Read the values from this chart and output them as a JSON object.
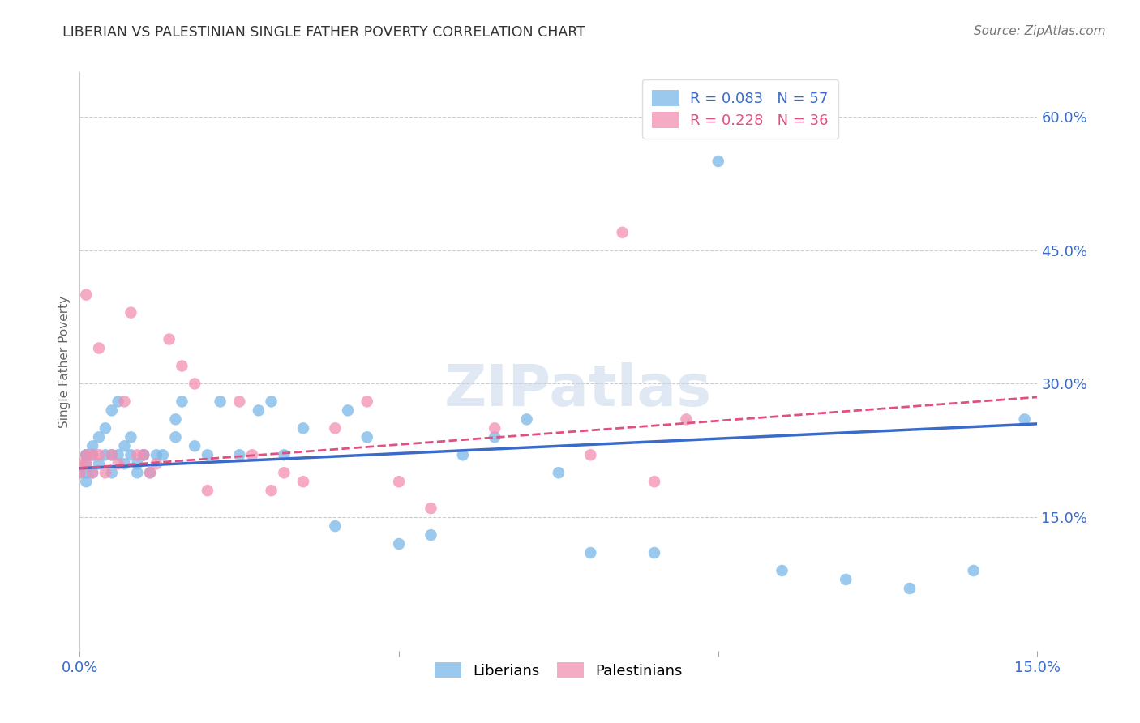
{
  "title": "LIBERIAN VS PALESTINIAN SINGLE FATHER POVERTY CORRELATION CHART",
  "source": "Source: ZipAtlas.com",
  "ylabel": "Single Father Poverty",
  "xlim": [
    0.0,
    0.15
  ],
  "ylim": [
    0.0,
    0.65
  ],
  "liberian_color": "#7ab8e8",
  "palestinian_color": "#f48fb1",
  "liberian_line_color": "#3a6bc9",
  "palestinian_line_color": "#e05080",
  "watermark": "ZIPatlas",
  "R_lib": 0.083,
  "N_lib": 57,
  "R_pal": 0.228,
  "N_pal": 36,
  "liberian_x": [
    0.0,
    0.001,
    0.001,
    0.001,
    0.001,
    0.001,
    0.002,
    0.002,
    0.002,
    0.003,
    0.003,
    0.004,
    0.004,
    0.005,
    0.005,
    0.005,
    0.006,
    0.006,
    0.007,
    0.007,
    0.008,
    0.008,
    0.009,
    0.009,
    0.01,
    0.01,
    0.011,
    0.012,
    0.013,
    0.015,
    0.015,
    0.016,
    0.018,
    0.02,
    0.022,
    0.025,
    0.028,
    0.03,
    0.032,
    0.035,
    0.04,
    0.042,
    0.045,
    0.05,
    0.055,
    0.06,
    0.065,
    0.07,
    0.075,
    0.08,
    0.09,
    0.1,
    0.11,
    0.12,
    0.13,
    0.14,
    0.148
  ],
  "liberian_y": [
    0.2,
    0.22,
    0.19,
    0.2,
    0.22,
    0.21,
    0.23,
    0.2,
    0.22,
    0.21,
    0.24,
    0.22,
    0.25,
    0.2,
    0.22,
    0.27,
    0.22,
    0.28,
    0.23,
    0.21,
    0.22,
    0.24,
    0.21,
    0.2,
    0.22,
    0.22,
    0.2,
    0.22,
    0.22,
    0.26,
    0.24,
    0.28,
    0.23,
    0.22,
    0.28,
    0.22,
    0.27,
    0.28,
    0.22,
    0.25,
    0.14,
    0.27,
    0.24,
    0.12,
    0.13,
    0.22,
    0.24,
    0.26,
    0.2,
    0.11,
    0.11,
    0.55,
    0.09,
    0.08,
    0.07,
    0.09,
    0.26
  ],
  "palestinian_x": [
    0.0,
    0.0,
    0.001,
    0.001,
    0.001,
    0.002,
    0.002,
    0.003,
    0.003,
    0.004,
    0.005,
    0.006,
    0.007,
    0.008,
    0.009,
    0.01,
    0.011,
    0.012,
    0.014,
    0.016,
    0.018,
    0.02,
    0.025,
    0.027,
    0.03,
    0.032,
    0.035,
    0.04,
    0.045,
    0.05,
    0.055,
    0.065,
    0.08,
    0.085,
    0.09,
    0.095
  ],
  "palestinian_y": [
    0.2,
    0.21,
    0.22,
    0.21,
    0.4,
    0.22,
    0.2,
    0.22,
    0.34,
    0.2,
    0.22,
    0.21,
    0.28,
    0.38,
    0.22,
    0.22,
    0.2,
    0.21,
    0.35,
    0.32,
    0.3,
    0.18,
    0.28,
    0.22,
    0.18,
    0.2,
    0.19,
    0.25,
    0.28,
    0.19,
    0.16,
    0.25,
    0.22,
    0.47,
    0.19,
    0.26
  ]
}
